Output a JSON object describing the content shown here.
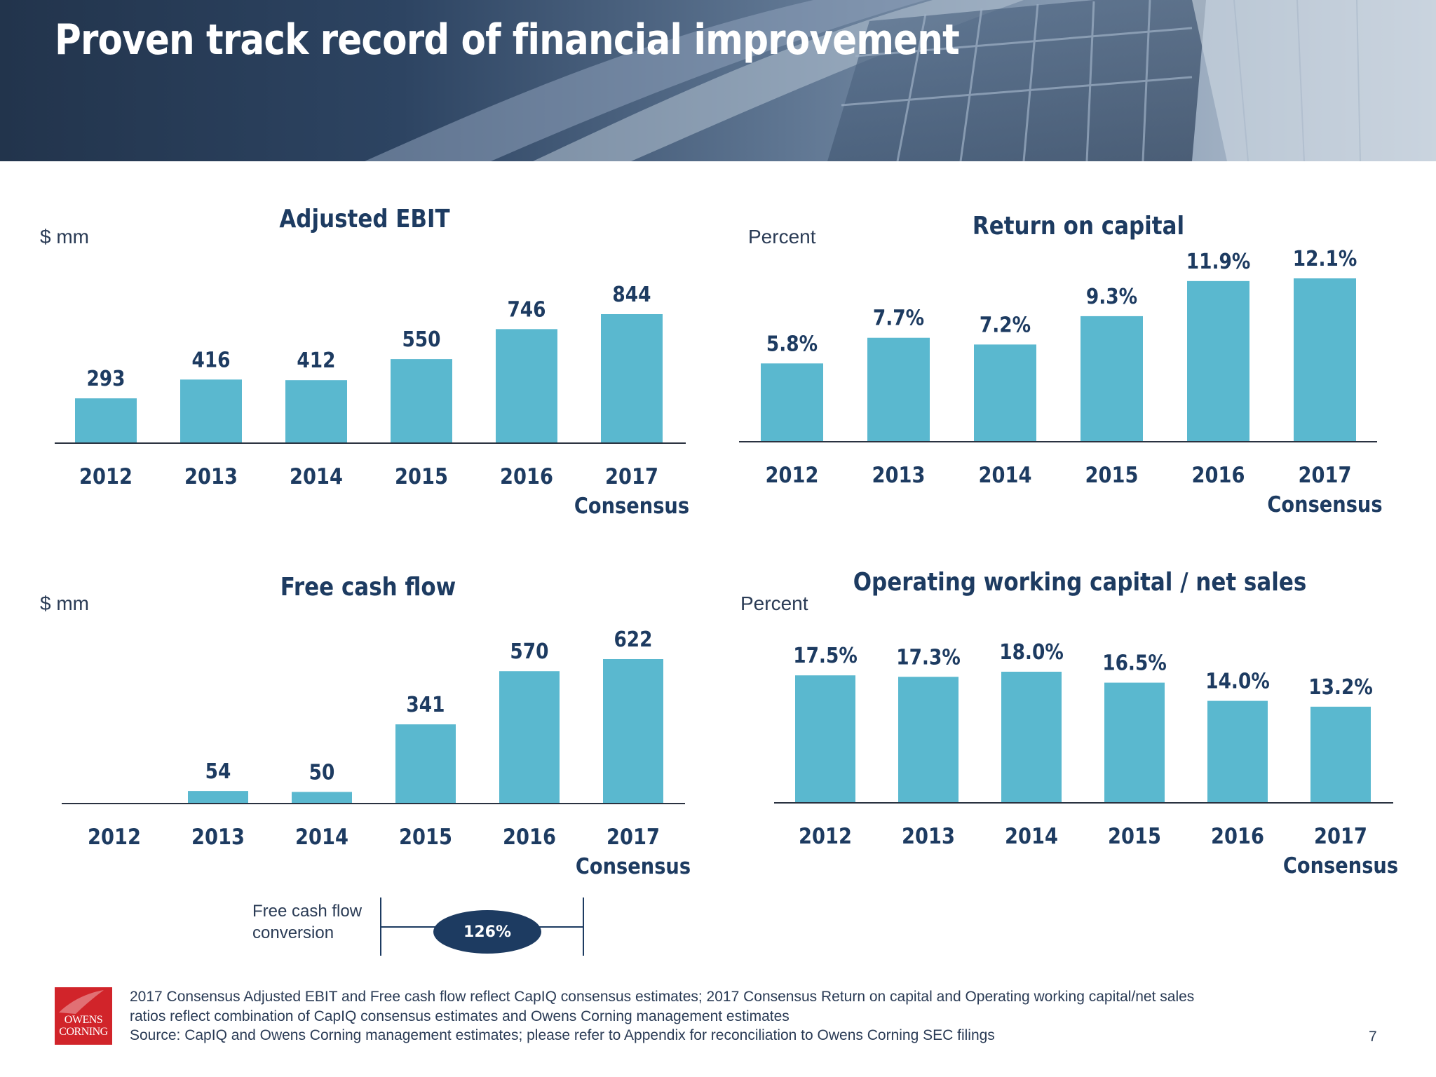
{
  "slide": {
    "title": "Proven track record of financial improvement",
    "page_number": "7"
  },
  "colors": {
    "bar": "#5ab8cf",
    "axis": "#2a3240",
    "label": "#1d3b61",
    "header_dark": "#22344c"
  },
  "chart_data": [
    {
      "type": "bar",
      "title": "Adjusted EBIT",
      "unit": "$ mm",
      "categories": [
        "2012",
        "2013",
        "2014",
        "2015",
        "2016",
        "2017 Consensus"
      ],
      "values": [
        293,
        416,
        412,
        550,
        746,
        844
      ],
      "data_labels": [
        "293",
        "416",
        "412",
        "550",
        "746",
        "844"
      ],
      "ylim": [
        0,
        900
      ]
    },
    {
      "type": "bar",
      "title": "Return on capital",
      "unit": "Percent",
      "categories": [
        "2012",
        "2013",
        "2014",
        "2015",
        "2016",
        "2017 Consensus"
      ],
      "values": [
        5.8,
        7.7,
        7.2,
        9.3,
        11.9,
        12.1
      ],
      "data_labels": [
        "5.8%",
        "7.7%",
        "7.2%",
        "9.3%",
        "11.9%",
        "12.1%"
      ],
      "ylim": [
        0,
        13
      ]
    },
    {
      "type": "bar",
      "title": "Free cash flow",
      "unit": "$ mm",
      "categories": [
        "2012",
        "2013",
        "2014",
        "2015",
        "2016",
        "2017 Consensus"
      ],
      "values": [
        0,
        54,
        50,
        341,
        570,
        622
      ],
      "data_labels": [
        "",
        "54",
        "50",
        "341",
        "570",
        "622"
      ],
      "ylim": [
        0,
        660
      ]
    },
    {
      "type": "bar",
      "title": "Operating working capital / net sales",
      "unit": "Percent",
      "categories": [
        "2012",
        "2013",
        "2014",
        "2015",
        "2016",
        "2017 Consensus"
      ],
      "values": [
        17.5,
        17.3,
        18.0,
        16.5,
        14.0,
        13.2
      ],
      "data_labels": [
        "17.5%",
        "17.3%",
        "18.0%",
        "16.5%",
        "14.0%",
        "13.2%"
      ],
      "ylim": [
        0,
        19
      ]
    }
  ],
  "fcf_conversion": {
    "label": "Free cash flow conversion",
    "value": "126%"
  },
  "footnotes": [
    "2017 Consensus Adjusted EBIT and Free cash flow reflect CapIQ consensus estimates; 2017 Consensus Return on capital and Operating working capital/net sales",
    "ratios reflect combination of CapIQ consensus estimates and Owens Corning management estimates",
    "Source: CapIQ and Owens Corning management estimates; please refer to Appendix for reconciliation to Owens Corning SEC filings"
  ],
  "logo": {
    "line1": "OWENS",
    "line2": "CORNING"
  }
}
